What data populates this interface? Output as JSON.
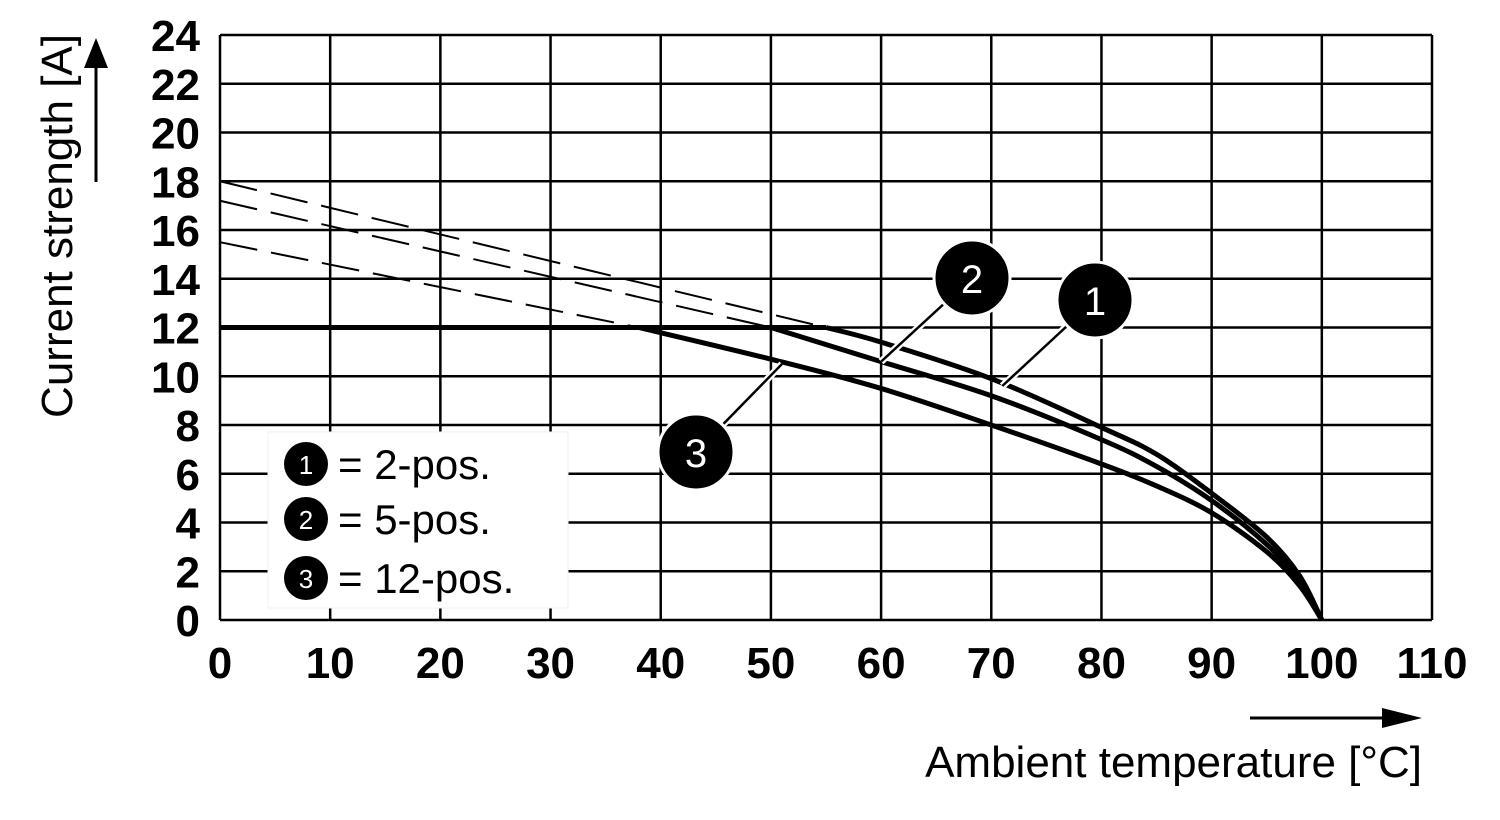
{
  "chart_data": {
    "type": "line",
    "title": "",
    "xlabel": "Ambient temperature [°C]",
    "ylabel": "Current strength [A]",
    "xlim": [
      0,
      110
    ],
    "ylim": [
      0,
      24
    ],
    "x_ticks": [
      "0",
      "10",
      "20",
      "30",
      "40",
      "50",
      "60",
      "70",
      "80",
      "90",
      "100",
      "110"
    ],
    "y_ticks": [
      "0",
      "2",
      "4",
      "6",
      "8",
      "10",
      "12",
      "14",
      "16",
      "18",
      "20",
      "22",
      "24"
    ],
    "grid": true,
    "legend_position": "bottom-left",
    "legend": [
      {
        "marker": "1",
        "label": "= 2-pos."
      },
      {
        "marker": "2",
        "label": "= 5-pos."
      },
      {
        "marker": "3",
        "label": "= 12-pos."
      }
    ],
    "series": [
      {
        "marker": "1",
        "limit": 12,
        "x": [
          0,
          55,
          60,
          70,
          80,
          85,
          90,
          95,
          98,
          100
        ],
        "y": [
          12,
          12,
          11.4,
          9.9,
          7.9,
          6.8,
          5.2,
          3.4,
          1.8,
          0
        ],
        "extrapolated_x": [
          0,
          55
        ],
        "extrapolated_y": [
          18,
          12
        ]
      },
      {
        "marker": "2",
        "limit": 12,
        "x": [
          0,
          50,
          60,
          70,
          80,
          85,
          90,
          95,
          98,
          100
        ],
        "y": [
          12,
          12,
          10.6,
          9.2,
          7.4,
          6.3,
          4.9,
          3.1,
          1.6,
          0
        ],
        "extrapolated_x": [
          0,
          50
        ],
        "extrapolated_y": [
          17.2,
          12
        ]
      },
      {
        "marker": "3",
        "limit": 12,
        "x": [
          0,
          38,
          50,
          60,
          70,
          80,
          85,
          90,
          95,
          98,
          100
        ],
        "y": [
          12,
          12,
          10.7,
          9.5,
          8.0,
          6.4,
          5.5,
          4.4,
          2.8,
          1.4,
          0
        ],
        "extrapolated_x": [
          0,
          38
        ],
        "extrapolated_y": [
          15.5,
          12
        ]
      }
    ],
    "callouts": [
      {
        "marker": "2",
        "anchor": [
          60,
          10.6
        ]
      },
      {
        "marker": "1",
        "anchor": [
          71,
          9.6
        ]
      },
      {
        "marker": "3",
        "anchor": [
          51,
          10.5
        ]
      }
    ]
  }
}
